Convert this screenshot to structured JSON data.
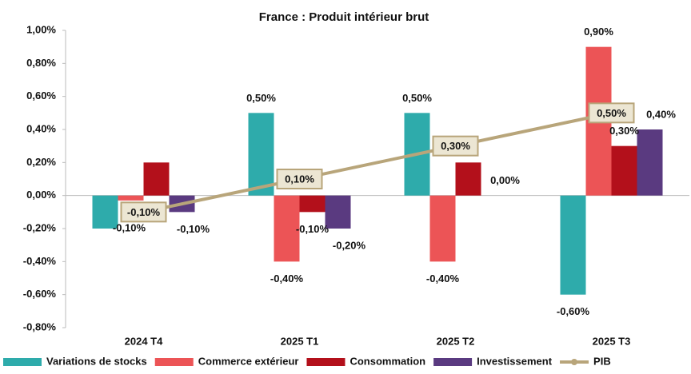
{
  "chart_data": {
    "type": "bar",
    "title": "France : Produit intérieur brut",
    "categories": [
      "2024 T4",
      "2025 T1",
      "2025 T2",
      "2025 T3"
    ],
    "series": [
      {
        "name": "Variations de stocks",
        "color": "#2eabab",
        "values": [
          -0.2,
          0.5,
          0.5,
          -0.6
        ],
        "value_labels": [
          null,
          "0,50%",
          "0,50%",
          "-0,60%"
        ]
      },
      {
        "name": "Commerce extérieur",
        "color": "#ec5456",
        "values": [
          -0.03,
          -0.4,
          -0.4,
          0.9
        ],
        "value_labels": [
          null,
          "-0,40%",
          "-0,40%",
          "0,90%"
        ]
      },
      {
        "name": "Consommation",
        "color": "#b3101b",
        "values": [
          0.2,
          -0.1,
          0.2,
          0.3
        ],
        "value_labels": [
          null,
          "-0,10%",
          null,
          "0,30%"
        ]
      },
      {
        "name": "Investissement",
        "color": "#5a3a80",
        "values": [
          -0.1,
          -0.2,
          0.0,
          0.4
        ],
        "value_labels": [
          "-0,10%",
          "-0,20%",
          "0,00%",
          "0,40%"
        ]
      },
      {
        "name": "PIB",
        "type": "line",
        "color": "#b8a57a",
        "values": [
          -0.1,
          0.1,
          0.3,
          0.5
        ],
        "value_labels": [
          "-0,10%",
          "0,10%",
          "0,30%",
          "0,50%"
        ]
      }
    ],
    "annotations": [
      "-0,10%"
    ],
    "ylim": [
      -0.8,
      1.0
    ],
    "yticks": [
      {
        "value": -0.8,
        "label": "-0,80%"
      },
      {
        "value": -0.6,
        "label": "-0,60%"
      },
      {
        "value": -0.4,
        "label": "-0,40%"
      },
      {
        "value": -0.2,
        "label": "-0,20%"
      },
      {
        "value": 0,
        "label": "0,00%"
      },
      {
        "value": 0.2,
        "label": "0,20%"
      },
      {
        "value": 0.4,
        "label": "0,40%"
      },
      {
        "value": 0.6,
        "label": "0,60%"
      },
      {
        "value": 0.8,
        "label": "0,80%"
      },
      {
        "value": 1.0,
        "label": "1,00%"
      }
    ],
    "grid": false
  }
}
